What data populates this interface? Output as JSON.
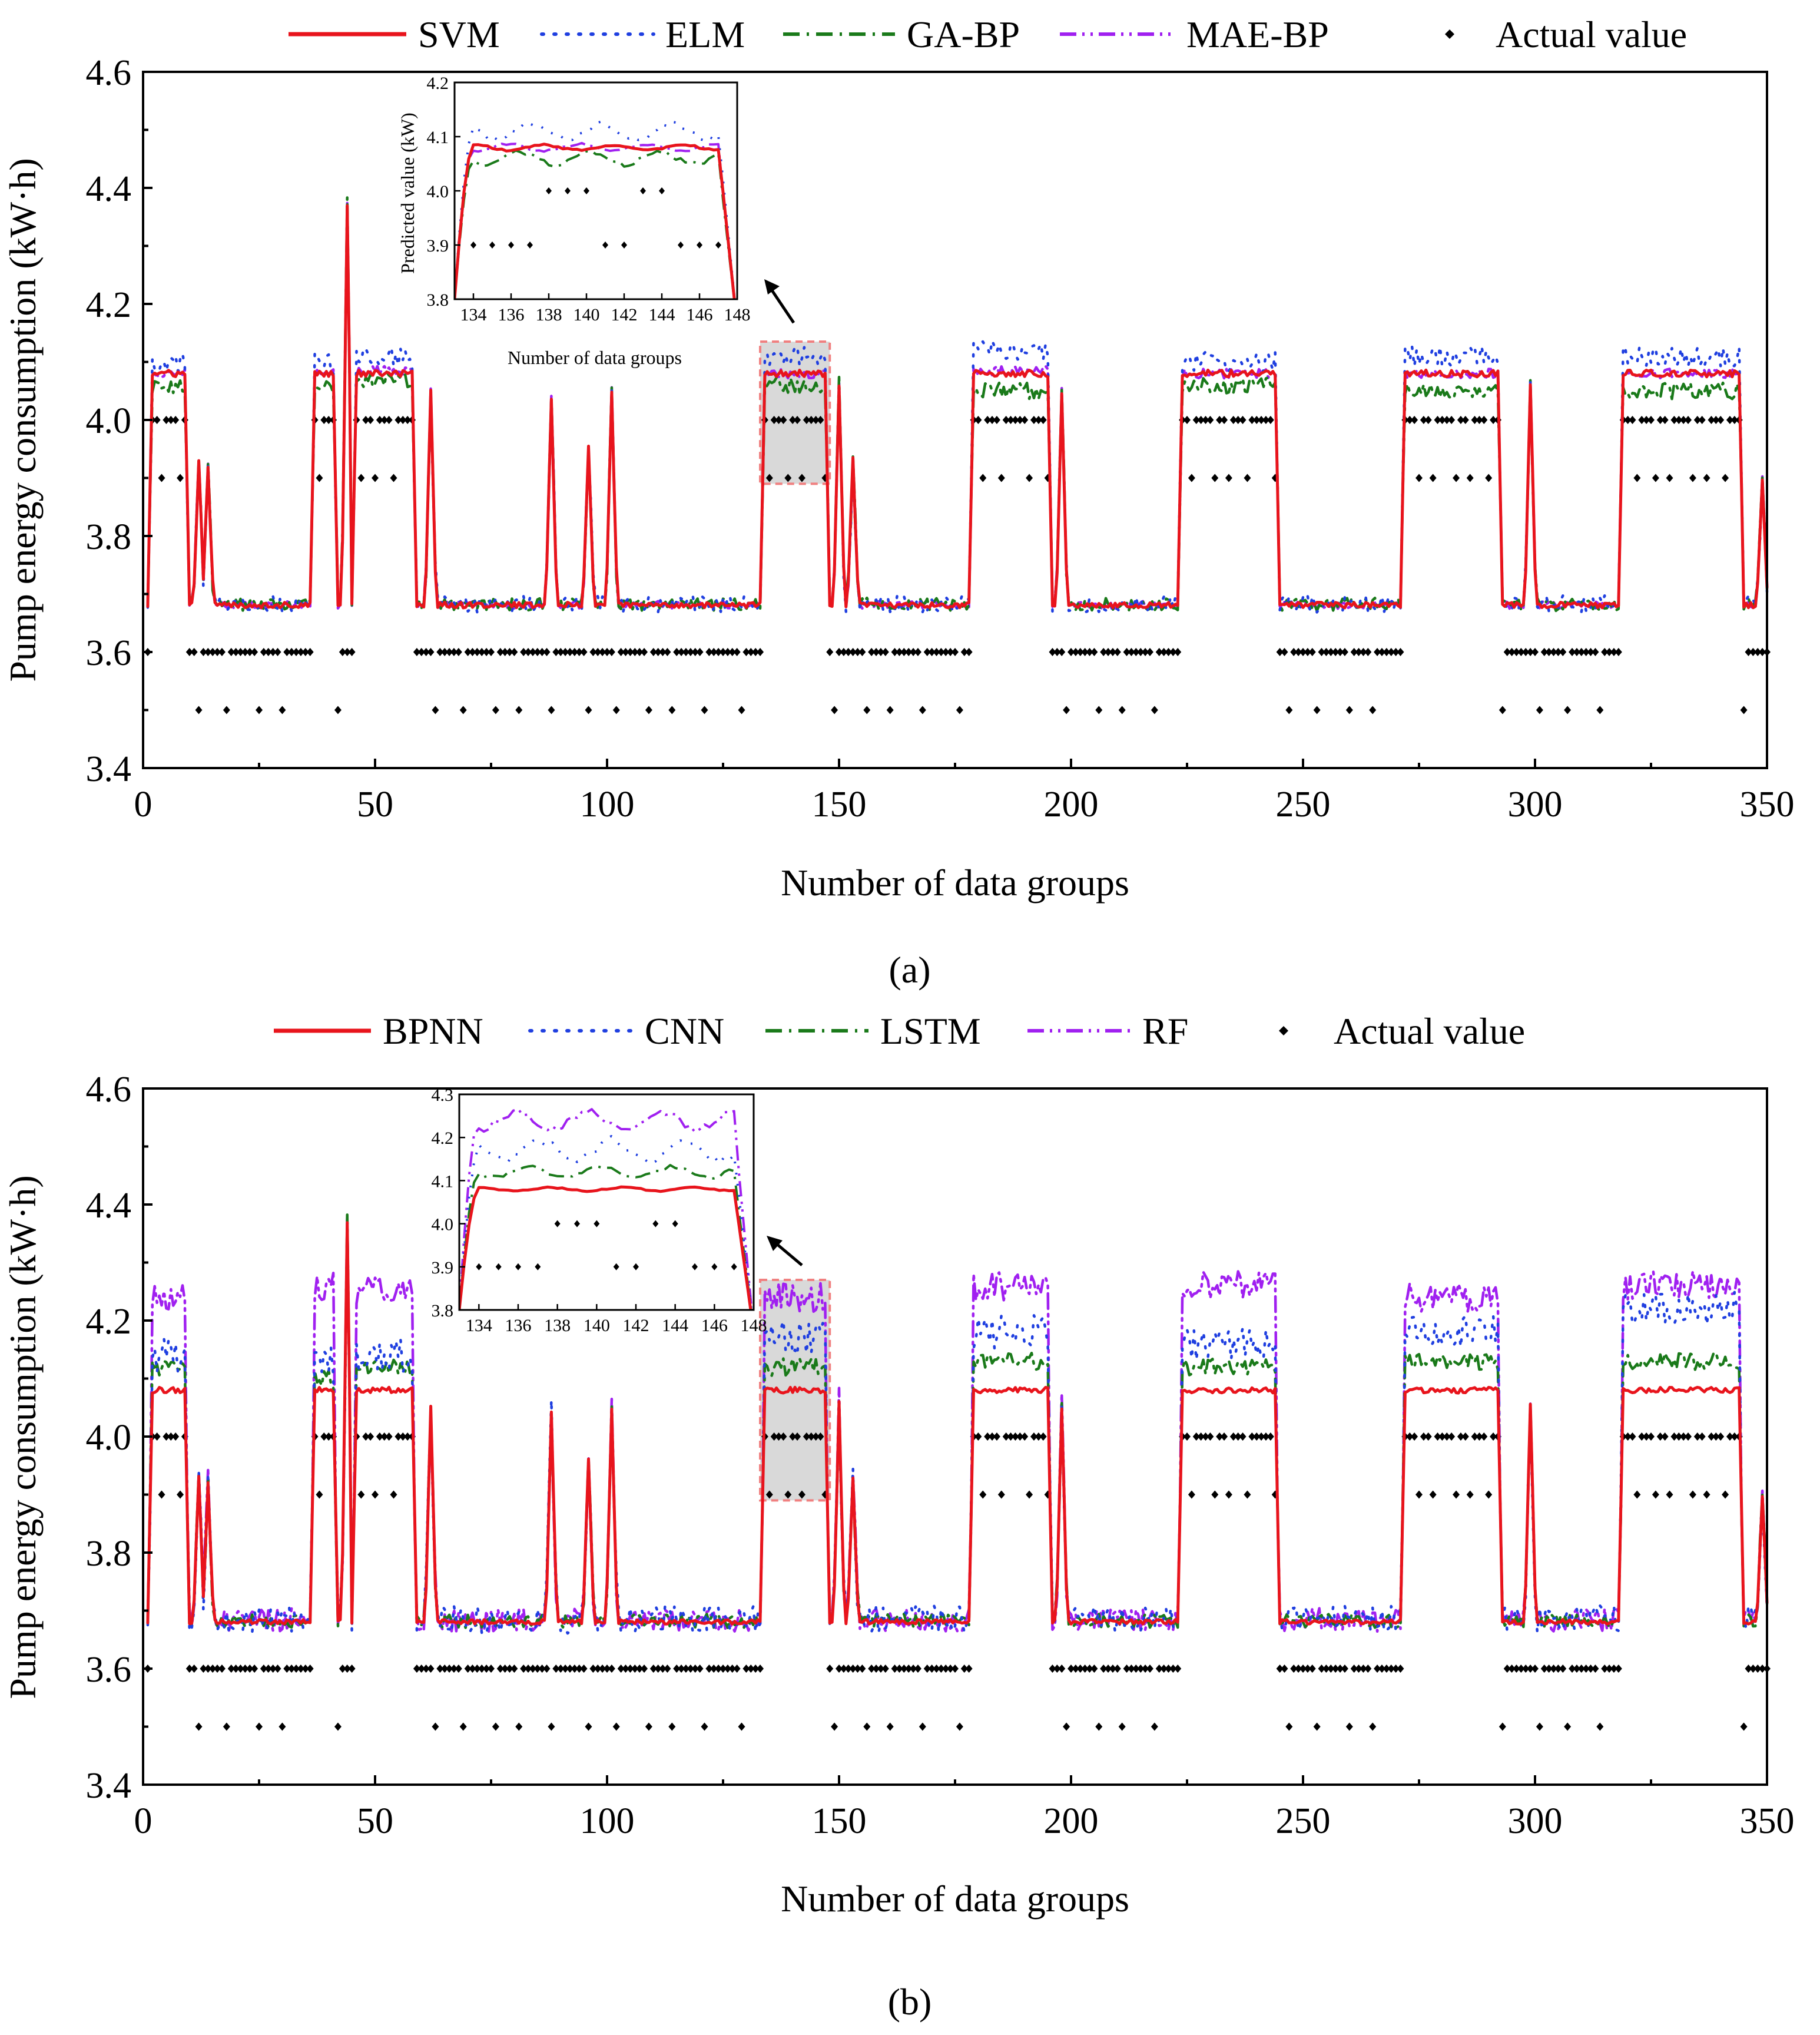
{
  "figure": {
    "panel_a_label": "(a)",
    "panel_b_label": "(b)"
  },
  "colors": {
    "red": "#e8141c",
    "blue": "#1f3fe0",
    "green": "#1a7a1a",
    "purple": "#a020f0",
    "black": "#000000",
    "highlight": "#d9d9d9",
    "highlight_border": "#f08080"
  },
  "chart_data": [
    {
      "id": "a",
      "type": "line",
      "title": "",
      "xlabel": "Number of data groups",
      "ylabel": "Pump energy consumption (kW·h)",
      "xlim": [
        0,
        350
      ],
      "ylim": [
        3.4,
        4.6
      ],
      "xticks": [
        0,
        50,
        100,
        150,
        200,
        250,
        300,
        350
      ],
      "yticks": [
        3.4,
        3.6,
        3.8,
        4.0,
        4.2,
        4.4,
        4.6
      ],
      "ytick_labels": [
        "3.4",
        "3.6",
        "3.8",
        "4.0",
        "4.2",
        "4.4",
        "4.6"
      ],
      "legend": [
        "SVM",
        "ELM",
        "GA-BP",
        "MAE-BP",
        "Actual value"
      ],
      "series": [
        {
          "name": "SVM",
          "style": "solid",
          "color": "red",
          "bias": [
            0,
            0,
            0,
            0,
            0,
            0,
            0,
            0
          ],
          "noise": 0.006
        },
        {
          "name": "ELM",
          "style": "dotted",
          "color": "blue",
          "bias": [
            0.02,
            0.02,
            0.03,
            0.03,
            0.04,
            0.02,
            0.03,
            0.03
          ],
          "noise": 0.018
        },
        {
          "name": "GA-BP",
          "style": "dashdot",
          "color": "green",
          "bias": [
            -0.02,
            -0.02,
            -0.01,
            -0.02,
            -0.03,
            -0.02,
            -0.03,
            -0.03
          ],
          "noise": 0.014
        },
        {
          "name": "MAE-BP",
          "style": "dashdotdot",
          "color": "purple",
          "bias": [
            0,
            0,
            0.005,
            0,
            0.005,
            0,
            0,
            0
          ],
          "noise": 0.008
        }
      ],
      "inset": {
        "xlabel": "Number of data groups",
        "ylabel": "Predicted value (kW)",
        "xlim": [
          133,
          148
        ],
        "ylim": [
          3.8,
          4.2
        ],
        "xticks": [
          134,
          136,
          138,
          140,
          142,
          144,
          146,
          148
        ],
        "yticks": [
          3.8,
          3.9,
          4.0,
          4.1,
          4.2
        ],
        "ytick_labels": [
          "3.8",
          "3.9",
          "4.0",
          "4.1",
          "4.2"
        ],
        "highlight_x": [
          133,
          148
        ],
        "highlight_y": [
          3.89,
          4.135
        ]
      }
    },
    {
      "id": "b",
      "type": "line",
      "title": "",
      "xlabel": "Number of data groups",
      "ylabel": "Pump energy consumption (kW·h)",
      "xlim": [
        0,
        350
      ],
      "ylim": [
        3.4,
        4.6
      ],
      "xticks": [
        0,
        50,
        100,
        150,
        200,
        250,
        300,
        350
      ],
      "yticks": [
        3.4,
        3.6,
        3.8,
        4.0,
        4.2,
        4.4,
        4.6
      ],
      "ytick_labels": [
        "3.4",
        "3.6",
        "3.8",
        "4.0",
        "4.2",
        "4.4",
        "4.6"
      ],
      "legend": [
        "BPNN",
        "CNN",
        "LSTM",
        "RF",
        "Actual value"
      ],
      "series": [
        {
          "name": "BPNN",
          "style": "solid",
          "color": "red",
          "bias": [
            0,
            0,
            0,
            0,
            0,
            0,
            0,
            0
          ],
          "noise": 0.005
        },
        {
          "name": "CNN",
          "style": "dotted",
          "color": "blue",
          "bias": [
            0.06,
            0.05,
            0.06,
            0.09,
            0.1,
            0.08,
            0.1,
            0.14
          ],
          "noise": 0.03
        },
        {
          "name": "LSTM",
          "style": "dashdot",
          "color": "green",
          "bias": [
            0.04,
            0.02,
            0.04,
            0.04,
            0.05,
            0.04,
            0.05,
            0.05
          ],
          "noise": 0.015
        },
        {
          "name": "RF",
          "style": "dashdotdot",
          "color": "purple",
          "bias": [
            0.16,
            0.18,
            0.17,
            0.16,
            0.18,
            0.18,
            0.16,
            0.18
          ],
          "noise": 0.025
        }
      ],
      "inset": {
        "xlabel": "",
        "ylabel": "",
        "xlim": [
          133,
          148
        ],
        "ylim": [
          3.8,
          4.3
        ],
        "xticks": [
          134,
          136,
          138,
          140,
          142,
          144,
          146,
          148
        ],
        "yticks": [
          3.8,
          3.9,
          4.0,
          4.1,
          4.2,
          4.3
        ],
        "ytick_labels": [
          "3.8",
          "3.9",
          "4.0",
          "4.1",
          "4.2",
          "4.3"
        ],
        "highlight_x": [
          133,
          148
        ],
        "highlight_y": [
          3.89,
          4.27
        ]
      }
    }
  ],
  "actual_value": {
    "plateaus": [
      {
        "x0": 2,
        "x1": 9
      },
      {
        "x0": 37,
        "x1": 41
      },
      {
        "x0": 46,
        "x1": 58
      },
      {
        "x0": 134,
        "x1": 147
      },
      {
        "x0": 179,
        "x1": 195
      },
      {
        "x0": 224,
        "x1": 244
      },
      {
        "x0": 272,
        "x1": 292
      },
      {
        "x0": 319,
        "x1": 344
      }
    ],
    "spikes": [
      {
        "x": 12,
        "y": 3.93
      },
      {
        "x": 14,
        "y": 3.92
      },
      {
        "x": 44,
        "y": 4.37
      },
      {
        "x": 62,
        "y": 4.05
      },
      {
        "x": 88,
        "y": 4.04
      },
      {
        "x": 96,
        "y": 3.96
      },
      {
        "x": 101,
        "y": 4.05
      },
      {
        "x": 150,
        "y": 4.06
      },
      {
        "x": 153,
        "y": 3.93
      },
      {
        "x": 198,
        "y": 4.05
      },
      {
        "x": 299,
        "y": 4.06
      },
      {
        "x": 349,
        "y": 3.9
      }
    ],
    "pattern_high": [
      4.0,
      4.0,
      3.9,
      4.0,
      4.0,
      4.0,
      3.9,
      4.0,
      4.0,
      3.9,
      4.0,
      4.0,
      4.0,
      4.0,
      3.9,
      4.0,
      4.0,
      3.9,
      4.0,
      4.0,
      4.0,
      3.9,
      4.0,
      4.0,
      4.0
    ],
    "pattern_low": [
      3.6,
      3.6,
      3.6,
      3.5,
      3.6,
      3.6,
      3.6,
      3.6,
      3.6,
      3.5,
      3.6,
      3.6,
      3.6,
      3.6,
      3.6,
      3.6,
      3.5,
      3.6,
      3.6,
      3.6,
      3.6,
      3.5,
      3.6,
      3.6,
      3.6,
      3.6,
      3.6,
      3.6,
      3.5,
      3.6,
      3.6,
      3.6,
      3.6
    ],
    "inset_points": [
      {
        "x": 134,
        "y": 3.9
      },
      {
        "x": 135,
        "y": 3.9
      },
      {
        "x": 136,
        "y": 3.9
      },
      {
        "x": 137,
        "y": 3.9
      },
      {
        "x": 138,
        "y": 4.0
      },
      {
        "x": 139,
        "y": 4.0
      },
      {
        "x": 140,
        "y": 4.0
      },
      {
        "x": 141,
        "y": 3.9
      },
      {
        "x": 142,
        "y": 3.9
      },
      {
        "x": 143,
        "y": 4.0
      },
      {
        "x": 144,
        "y": 4.0
      },
      {
        "x": 145,
        "y": 3.9
      },
      {
        "x": 146,
        "y": 3.9
      },
      {
        "x": 147,
        "y": 3.9
      }
    ]
  }
}
